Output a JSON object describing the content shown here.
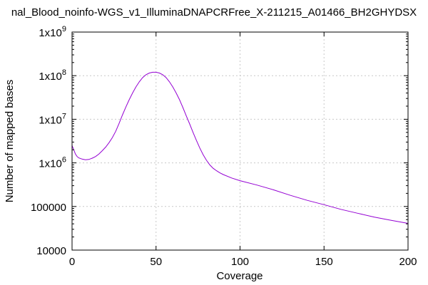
{
  "chart_data": {
    "type": "line",
    "title": "nal_Blood_noinfo-WGS_v1_IlluminaDNAPCRFree_X-211215_A01466_BH2GHYDSX",
    "xlabel": "Coverage",
    "ylabel": "Number of mapped bases",
    "xlim": [
      0,
      200
    ],
    "ylim": [
      10000,
      1000000000
    ],
    "yscale": "log",
    "grid": true,
    "x_ticks": [
      0,
      50,
      100,
      150,
      200
    ],
    "x_tick_labels": [
      "0",
      "50",
      "100",
      "150",
      "200"
    ],
    "y_ticks": [
      {
        "value": 10000,
        "base": "10000",
        "exp": ""
      },
      {
        "value": 100000,
        "base": "100000",
        "exp": ""
      },
      {
        "value": 1000000,
        "base": "1x10",
        "exp": "6"
      },
      {
        "value": 10000000,
        "base": "1x10",
        "exp": "7"
      },
      {
        "value": 100000000,
        "base": "1x10",
        "exp": "8"
      },
      {
        "value": 1000000000,
        "base": "1x10",
        "exp": "9"
      }
    ],
    "series": [
      {
        "color": "#9400d3",
        "x": [
          0,
          1,
          2,
          3,
          4,
          6,
          8,
          10,
          12,
          14,
          16,
          18,
          20,
          22,
          24,
          26,
          28,
          30,
          32,
          34,
          36,
          38,
          40,
          42,
          44,
          46,
          48,
          50,
          52,
          54,
          56,
          58,
          60,
          62,
          64,
          66,
          68,
          70,
          72,
          74,
          76,
          78,
          80,
          82,
          84,
          86,
          88,
          90,
          95,
          100,
          110,
          120,
          130,
          140,
          150,
          160,
          170,
          180,
          190,
          200
        ],
        "y": [
          2500000,
          2000000,
          1600000,
          1400000,
          1300000,
          1220000,
          1180000,
          1200000,
          1280000,
          1400000,
          1600000,
          1900000,
          2300000,
          2900000,
          3800000,
          5300000,
          8000000,
          12500000,
          19000000,
          28000000,
          40000000,
          55000000,
          72000000,
          90000000,
          105000000,
          115000000,
          120000000,
          120000000,
          115000000,
          105000000,
          90000000,
          72000000,
          55000000,
          40000000,
          28000000,
          18500000,
          12000000,
          7800000,
          5000000,
          3300000,
          2200000,
          1550000,
          1150000,
          900000,
          750000,
          660000,
          590000,
          540000,
          450000,
          390000,
          310000,
          240000,
          180000,
          138000,
          110000,
          86000,
          70000,
          57000,
          48000,
          41000
        ]
      }
    ]
  }
}
